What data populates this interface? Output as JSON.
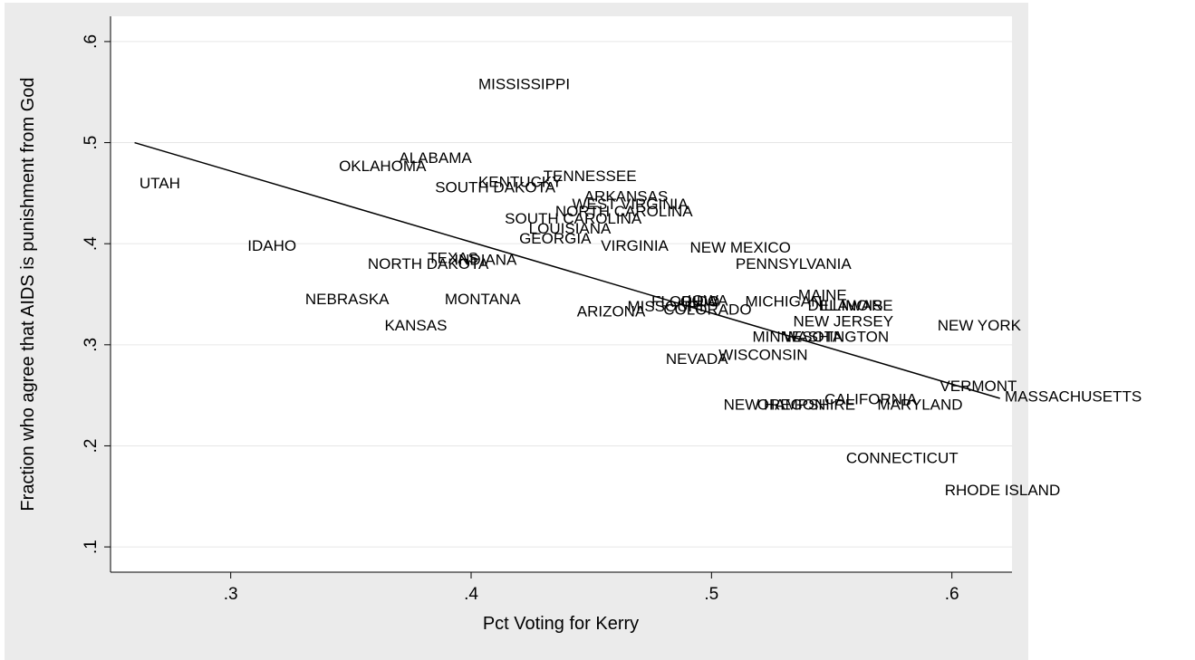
{
  "chart_data": {
    "type": "scatter",
    "title": "",
    "xlabel": "Pct Voting for Kerry",
    "ylabel": "Fraction who agree that AIDS is punishment from God",
    "xlim": [
      0.25,
      0.625
    ],
    "ylim": [
      0.075,
      0.625
    ],
    "xticks": [
      0.3,
      0.4,
      0.5,
      0.6
    ],
    "xtick_labels": [
      ".3",
      ".4",
      ".5",
      ".6"
    ],
    "yticks": [
      0.1,
      0.2,
      0.3,
      0.4,
      0.5,
      0.6
    ],
    "ytick_labels": [
      ".1",
      ".2",
      ".3",
      ".4",
      ".5",
      ".6"
    ],
    "grid": true,
    "legend": "none",
    "marker": "state name",
    "colors": {
      "background": "#ebebeb",
      "plot_area": "#ffffff",
      "grid": "#e6e6e6",
      "text": "#000000",
      "fit_line": "#000000"
    },
    "points": [
      {
        "label": "MISSISSIPPI",
        "x": 0.403,
        "y": 0.557
      },
      {
        "label": "ALABAMA",
        "x": 0.37,
        "y": 0.484
      },
      {
        "label": "OKLAHOMA",
        "x": 0.345,
        "y": 0.476
      },
      {
        "label": "UTAH",
        "x": 0.262,
        "y": 0.459
      },
      {
        "label": "TENNESSEE",
        "x": 0.43,
        "y": 0.466
      },
      {
        "label": "KENTUCKY",
        "x": 0.403,
        "y": 0.46
      },
      {
        "label": "SOUTH DAKOTA",
        "x": 0.385,
        "y": 0.455
      },
      {
        "label": "ARKANSAS",
        "x": 0.447,
        "y": 0.446
      },
      {
        "label": "WEST VIRGINIA",
        "x": 0.442,
        "y": 0.438
      },
      {
        "label": "NORTH CAROLINA",
        "x": 0.435,
        "y": 0.431
      },
      {
        "label": "SOUTH CAROLINA",
        "x": 0.414,
        "y": 0.424
      },
      {
        "label": "LOUISIANA",
        "x": 0.424,
        "y": 0.414
      },
      {
        "label": "GEORGIA",
        "x": 0.42,
        "y": 0.404
      },
      {
        "label": "VIRGINIA",
        "x": 0.454,
        "y": 0.397
      },
      {
        "label": "NEW MEXICO",
        "x": 0.491,
        "y": 0.395
      },
      {
        "label": "IDAHO",
        "x": 0.307,
        "y": 0.397
      },
      {
        "label": "TEXAS",
        "x": 0.382,
        "y": 0.385
      },
      {
        "label": "INDIANA",
        "x": 0.393,
        "y": 0.383
      },
      {
        "label": "NORTH DAKOTA",
        "x": 0.357,
        "y": 0.379
      },
      {
        "label": "PENNSYLVANIA",
        "x": 0.51,
        "y": 0.379
      },
      {
        "label": "NEBRASKA",
        "x": 0.331,
        "y": 0.344
      },
      {
        "label": "MONTANA",
        "x": 0.389,
        "y": 0.344
      },
      {
        "label": "MAINE",
        "x": 0.536,
        "y": 0.348
      },
      {
        "label": "FLORIDA",
        "x": 0.475,
        "y": 0.342
      },
      {
        "label": "IOWA",
        "x": 0.49,
        "y": 0.343
      },
      {
        "label": "OHIO",
        "x": 0.487,
        "y": 0.342
      },
      {
        "label": "MICHIGAN",
        "x": 0.514,
        "y": 0.342
      },
      {
        "label": "DELAWARE",
        "x": 0.54,
        "y": 0.338
      },
      {
        "label": "ILLINOIS",
        "x": 0.545,
        "y": 0.338
      },
      {
        "label": "MISSOURI",
        "x": 0.465,
        "y": 0.337
      },
      {
        "label": "COLORADO",
        "x": 0.48,
        "y": 0.334
      },
      {
        "label": "ARIZONA",
        "x": 0.444,
        "y": 0.332
      },
      {
        "label": "NEW JERSEY",
        "x": 0.534,
        "y": 0.322
      },
      {
        "label": "NEW YORK",
        "x": 0.594,
        "y": 0.318
      },
      {
        "label": "KANSAS",
        "x": 0.364,
        "y": 0.318
      },
      {
        "label": "MINNESOTA",
        "x": 0.517,
        "y": 0.307
      },
      {
        "label": "WASHINGTON",
        "x": 0.53,
        "y": 0.307
      },
      {
        "label": "WISCONSIN",
        "x": 0.503,
        "y": 0.289
      },
      {
        "label": "NEVADA",
        "x": 0.481,
        "y": 0.285
      },
      {
        "label": "VERMONT",
        "x": 0.595,
        "y": 0.258
      },
      {
        "label": "MASSACHUSETTS",
        "x": 0.622,
        "y": 0.248
      },
      {
        "label": "CALIFORNIA",
        "x": 0.547,
        "y": 0.245
      },
      {
        "label": "MARYLAND",
        "x": 0.569,
        "y": 0.24
      },
      {
        "label": "NEW HAMPSHIRE",
        "x": 0.505,
        "y": 0.24
      },
      {
        "label": "OREGON",
        "x": 0.519,
        "y": 0.24
      },
      {
        "label": "CONNECTICUT",
        "x": 0.556,
        "y": 0.187
      },
      {
        "label": "RHODE ISLAND",
        "x": 0.597,
        "y": 0.155
      }
    ],
    "fit_line": {
      "x": [
        0.26,
        0.62
      ],
      "y": [
        0.5,
        0.247
      ]
    }
  }
}
